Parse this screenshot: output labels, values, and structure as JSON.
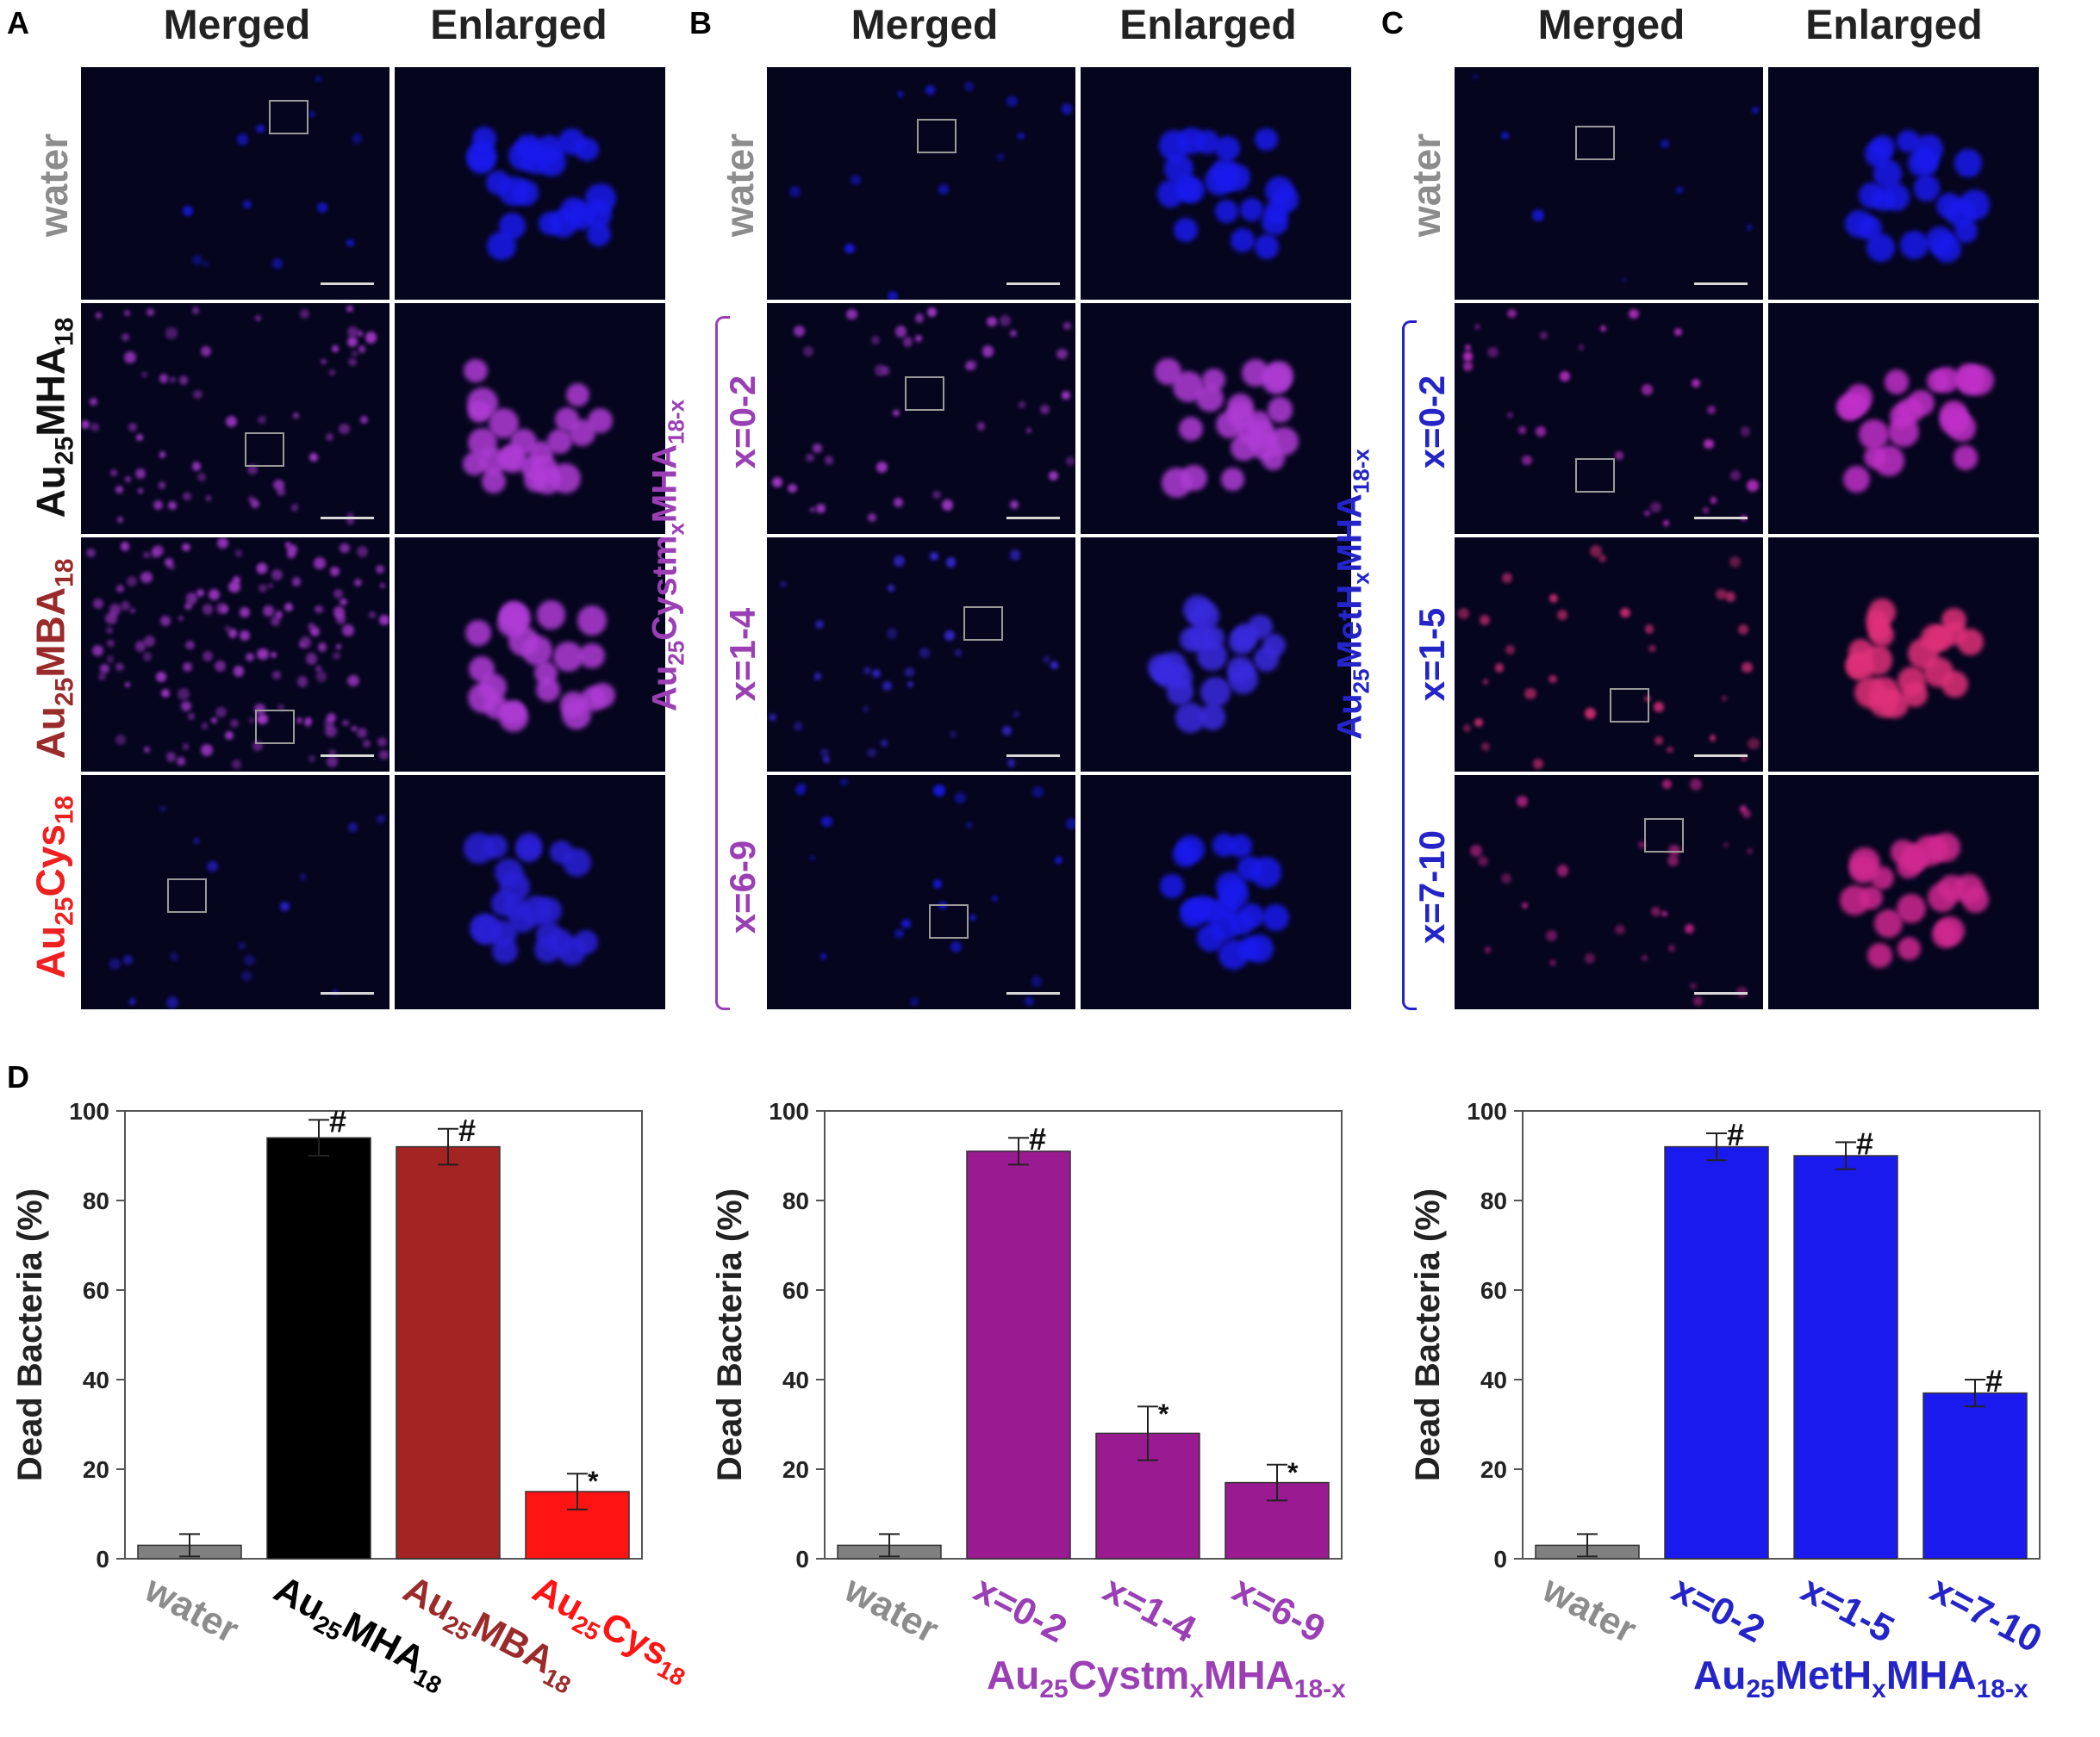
{
  "panels": {
    "A": {
      "letter": "A",
      "headers": [
        "Merged",
        "Enlarged"
      ],
      "rows": [
        {
          "label_main": "water",
          "label_sub": "",
          "label_suffix": "",
          "color": "#8c8c8c"
        },
        {
          "label_main": "Au",
          "label_sub": "25",
          "label_suffix": "MHA",
          "label_sub2": "18",
          "color": "#111111"
        },
        {
          "label_main": "Au",
          "label_sub": "25",
          "label_suffix": "MBA",
          "label_sub2": "18",
          "color": "#9b2a2a"
        },
        {
          "label_main": "Au",
          "label_sub": "25",
          "label_suffix": "Cys",
          "label_sub2": "18",
          "color": "#ef2020"
        }
      ]
    },
    "B": {
      "letter": "B",
      "headers": [
        "Merged",
        "Enlarged"
      ],
      "water_label": "water",
      "group": {
        "text": "Au25CystmxMHA18-x",
        "color": "#9b3fb5"
      },
      "rows": [
        "x=0-2",
        "x=1-4",
        "x=6-9"
      ],
      "row_color": "#9b3fb5"
    },
    "C": {
      "letter": "C",
      "headers": [
        "Merged",
        "Enlarged"
      ],
      "water_label": "water",
      "group": {
        "text": "Au25MetHxMHA18-x",
        "color": "#2424c8"
      },
      "rows": [
        "x=0-2",
        "x=1-5",
        "x=7-10"
      ],
      "row_color": "#2424c8"
    },
    "D": {
      "letter": "D"
    }
  },
  "colors": {
    "water": "#808080",
    "mha": "#000000",
    "mba": "#a42424",
    "cys": "#ff1414",
    "cystm": "#9a1a92",
    "meth": "#1a1aee",
    "grey_label": "#8c8c8c"
  },
  "chart_data": [
    {
      "type": "bar",
      "ylabel": "Dead Bacteria (%)",
      "ylim": [
        0,
        100
      ],
      "yticks": [
        0,
        20,
        40,
        60,
        80,
        100
      ],
      "categories": [
        "water",
        "Au25MHA18",
        "Au25MBA18",
        "Au25Cys18"
      ],
      "values": [
        3,
        94,
        92,
        15
      ],
      "errors": [
        2.5,
        4,
        4,
        4
      ],
      "marks": [
        "",
        "#",
        "#",
        "*"
      ],
      "bar_colors": [
        "#808080",
        "#000000",
        "#a42424",
        "#ff1414"
      ],
      "label_colors": [
        "#8c8c8c",
        "#000000",
        "#9b2a2a",
        "#ff1414"
      ],
      "group_label": ""
    },
    {
      "type": "bar",
      "ylabel": "Dead Bacteria (%)",
      "ylim": [
        0,
        100
      ],
      "yticks": [
        0,
        20,
        40,
        60,
        80,
        100
      ],
      "categories": [
        "water",
        "x=0-2",
        "x=1-4",
        "x=6-9"
      ],
      "values": [
        3,
        91,
        28,
        17
      ],
      "errors": [
        2.5,
        3,
        6,
        4
      ],
      "marks": [
        "",
        "#",
        "*",
        "*"
      ],
      "bar_colors": [
        "#808080",
        "#9a1a92",
        "#9a1a92",
        "#9a1a92"
      ],
      "label_colors": [
        "#8c8c8c",
        "#9b3fb5",
        "#9b3fb5",
        "#9b3fb5"
      ],
      "group_label": "Au25CystmxMHA18-x"
    },
    {
      "type": "bar",
      "ylabel": "Dead Bacteria (%)",
      "ylim": [
        0,
        100
      ],
      "yticks": [
        0,
        20,
        40,
        60,
        80,
        100
      ],
      "categories": [
        "water",
        "x=0-2",
        "x=1-5",
        "x=7-10"
      ],
      "values": [
        3,
        92,
        90,
        37
      ],
      "errors": [
        2.5,
        3,
        3,
        3
      ],
      "marks": [
        "",
        "#",
        "#",
        "#"
      ],
      "bar_colors": [
        "#808080",
        "#1a1aee",
        "#1a1aee",
        "#1a1aee"
      ],
      "label_colors": [
        "#8c8c8c",
        "#2424c8",
        "#2424c8",
        "#2424c8"
      ],
      "group_label": "Au25MetHxMHA18-x"
    }
  ]
}
